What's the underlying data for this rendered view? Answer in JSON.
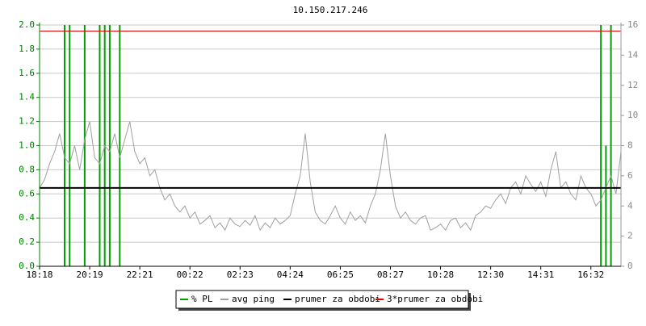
{
  "chart_data": {
    "type": "line",
    "title": "10.150.217.246",
    "categories": [
      "18:18",
      null,
      null,
      null,
      null,
      null,
      null,
      null,
      null,
      null,
      "20:19",
      null,
      null,
      null,
      null,
      null,
      null,
      null,
      null,
      null,
      "22:21",
      null,
      null,
      null,
      null,
      null,
      null,
      null,
      null,
      null,
      "00:22",
      null,
      null,
      null,
      null,
      null,
      null,
      null,
      null,
      null,
      "02:23",
      null,
      null,
      null,
      null,
      null,
      null,
      null,
      null,
      null,
      "04:24",
      null,
      null,
      null,
      null,
      null,
      null,
      null,
      null,
      null,
      "06:25",
      null,
      null,
      null,
      null,
      null,
      null,
      null,
      null,
      null,
      "08:27",
      null,
      null,
      null,
      null,
      null,
      null,
      null,
      null,
      null,
      "10:28",
      null,
      null,
      null,
      null,
      null,
      null,
      null,
      null,
      null,
      "12:30",
      null,
      null,
      null,
      null,
      null,
      null,
      null,
      null,
      null,
      "14:31",
      null,
      null,
      null,
      null,
      null,
      null,
      null,
      null,
      null,
      "16:32",
      null,
      null,
      null,
      null,
      null,
      null
    ],
    "series": [
      {
        "name": "% PL",
        "color": "#00a000",
        "type": "spike",
        "axis": "y2",
        "values": [
          0,
          0,
          0,
          0,
          0,
          16,
          16,
          0,
          0,
          16,
          0,
          0,
          16,
          16,
          16,
          0,
          16,
          0,
          0,
          0,
          0,
          0,
          0,
          0,
          0,
          0,
          0,
          0,
          0,
          0,
          0,
          0,
          0,
          0,
          0,
          0,
          0,
          0,
          0,
          0,
          0,
          0,
          0,
          0,
          0,
          0,
          0,
          0,
          0,
          0,
          0,
          0,
          0,
          0,
          0,
          0,
          0,
          0,
          0,
          0,
          0,
          0,
          0,
          0,
          0,
          0,
          0,
          0,
          0,
          0,
          0,
          0,
          0,
          0,
          0,
          0,
          0,
          0,
          0,
          0,
          0,
          0,
          0,
          0,
          0,
          0,
          0,
          0,
          0,
          0,
          0,
          0,
          0,
          0,
          0,
          0,
          0,
          0,
          0,
          0,
          0,
          0,
          0,
          0,
          0,
          0,
          0,
          0,
          0,
          0,
          0,
          0,
          16,
          8,
          16,
          0,
          0
        ]
      },
      {
        "name": "avg ping",
        "color": "#a0a0a0",
        "type": "line",
        "values": [
          0.65,
          0.72,
          0.85,
          0.95,
          1.1,
          0.9,
          0.85,
          1.0,
          0.8,
          1.05,
          1.2,
          0.9,
          0.85,
          1.0,
          0.95,
          1.1,
          0.9,
          1.05,
          1.2,
          0.95,
          0.85,
          0.9,
          0.75,
          0.8,
          0.65,
          0.55,
          0.6,
          0.5,
          0.45,
          0.5,
          0.4,
          0.45,
          0.35,
          0.38,
          0.42,
          0.32,
          0.36,
          0.3,
          0.4,
          0.35,
          0.33,
          0.38,
          0.34,
          0.42,
          0.3,
          0.36,
          0.32,
          0.4,
          0.35,
          0.38,
          0.42,
          0.6,
          0.75,
          1.1,
          0.7,
          0.45,
          0.38,
          0.35,
          0.42,
          0.5,
          0.4,
          0.35,
          0.45,
          0.38,
          0.42,
          0.36,
          0.5,
          0.6,
          0.8,
          1.1,
          0.75,
          0.5,
          0.4,
          0.45,
          0.38,
          0.35,
          0.4,
          0.42,
          0.3,
          0.32,
          0.35,
          0.3,
          0.38,
          0.4,
          0.32,
          0.36,
          0.3,
          0.42,
          0.45,
          0.5,
          0.48,
          0.55,
          0.6,
          0.52,
          0.65,
          0.7,
          0.6,
          0.75,
          0.68,
          0.62,
          0.7,
          0.58,
          0.8,
          0.95,
          0.65,
          0.7,
          0.6,
          0.55,
          0.75,
          0.65,
          0.6,
          0.5,
          0.55,
          0.65,
          0.75,
          0.6,
          0.95
        ]
      },
      {
        "name": "prumer za obdobi",
        "color": "#000000",
        "type": "hline",
        "value": 0.65
      },
      {
        "name": "3*prumer za obdobi",
        "color": "#e00000",
        "type": "hline",
        "value": 1.95
      }
    ],
    "ylim": [
      0,
      2
    ],
    "yticks": [
      {
        "value": 0,
        "label": "0.0"
      },
      0.2,
      0.4,
      0.6,
      0.8,
      {
        "value": 1,
        "label": "1.0"
      },
      1.2,
      1.4,
      1.6,
      1.8,
      {
        "value": 2,
        "label": "2.0"
      }
    ],
    "y2lim": [
      0,
      16
    ],
    "y2ticks": [
      0,
      2,
      4,
      6,
      8,
      10,
      12,
      14,
      16
    ],
    "grid": true
  }
}
